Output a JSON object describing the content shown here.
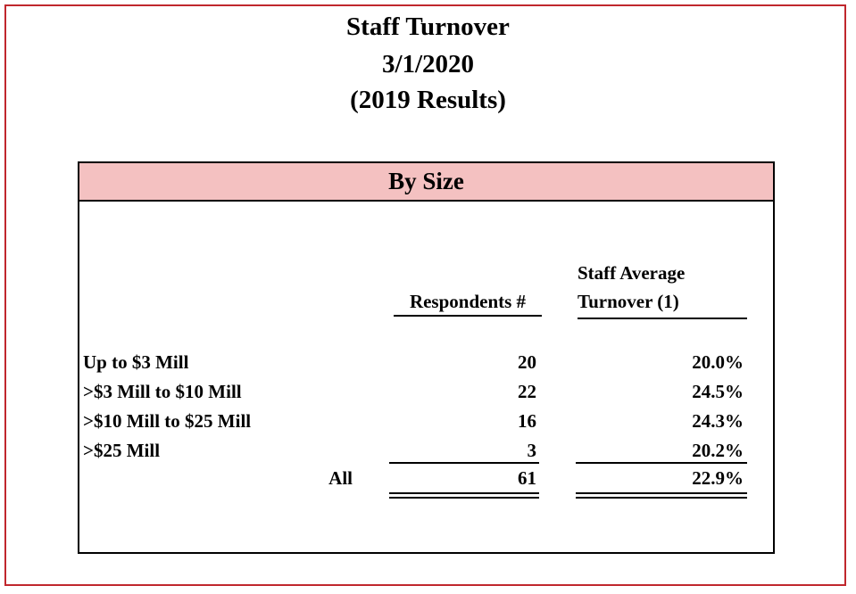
{
  "report": {
    "title": "Staff Turnover",
    "date": "3/1/2020",
    "subtitle": "(2019 Results)"
  },
  "table": {
    "section_title": "By Size",
    "col_respondents": "Respondents #",
    "col_turnover_line1": "Staff Average",
    "col_turnover_line2": "Turnover (1)",
    "rows": [
      {
        "label": "Up to $3 Mill",
        "respondents": "20",
        "turnover": "20.0%"
      },
      {
        "label": ">$3 Mill to $10 Mill",
        "respondents": "22",
        "turnover": "24.5%"
      },
      {
        "label": ">$10 Mill to $25 Mill",
        "respondents": "16",
        "turnover": "24.3%"
      },
      {
        "label": ">$25 Mill",
        "respondents": "3",
        "turnover": "20.2%"
      }
    ],
    "total": {
      "label": "All",
      "respondents": "61",
      "turnover": "22.9%"
    }
  },
  "colors": {
    "frame_border": "#c0272d",
    "header_band": "#f4c1c1"
  }
}
